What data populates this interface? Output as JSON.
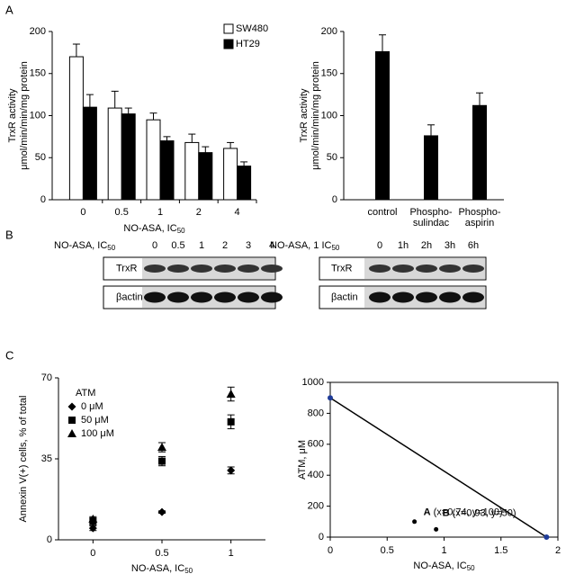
{
  "panels": {
    "a": "A",
    "b": "B",
    "c": "C"
  },
  "chart_data": [
    {
      "type": "bar",
      "ylabel": [
        "TrxR activity",
        "μmol/min/min/mg protein"
      ],
      "xlabel": {
        "text": "NO-ASA, IC",
        "sub": "50"
      },
      "categories": [
        "0",
        "0.5",
        "1",
        "2",
        "4"
      ],
      "series": [
        {
          "name": "SW480",
          "color": "#ffffff",
          "values": [
            170,
            109,
            95,
            68,
            61
          ],
          "errors": [
            15,
            20,
            8,
            10,
            7
          ]
        },
        {
          "name": "HT29",
          "color": "#000000",
          "values": [
            110,
            102,
            70,
            56,
            40
          ],
          "errors": [
            15,
            7,
            5,
            7,
            5
          ]
        }
      ],
      "ylim": [
        0,
        200
      ],
      "yticks": [
        0,
        50,
        100,
        150,
        200
      ]
    },
    {
      "type": "bar",
      "ylabel": [
        "TrxR activity",
        "μmol/min/min/mg protein"
      ],
      "categories": [
        [
          "control"
        ],
        [
          "Phospho-",
          "sulindac"
        ],
        [
          "Phospho-",
          "aspirin"
        ]
      ],
      "series": [
        {
          "color": "#000000",
          "values": [
            176,
            76,
            112
          ],
          "errors": [
            20,
            13,
            15
          ]
        }
      ],
      "ylim": [
        0,
        200
      ],
      "yticks": [
        0,
        50,
        100,
        150,
        200
      ]
    },
    {
      "type": "scatter",
      "ylabel": [
        "Annexin V(+) cells, % of total"
      ],
      "xlabel": {
        "text": "NO-ASA, IC",
        "sub": "50"
      },
      "legend_title": "ATM",
      "x": [
        0,
        0.5,
        1
      ],
      "series": [
        {
          "name": "0 μM",
          "marker": "diamond",
          "color": "#000000",
          "values": [
            5,
            12,
            30
          ],
          "errors": [
            1,
            0.5,
            1.5
          ]
        },
        {
          "name": "50 μM",
          "marker": "square",
          "color": "#000000",
          "values": [
            8,
            34,
            51
          ],
          "errors": [
            1.5,
            2,
            3
          ]
        },
        {
          "name": "100 μM",
          "marker": "triangle",
          "color": "#000000",
          "values": [
            9,
            40,
            63
          ],
          "errors": [
            1,
            2,
            3
          ]
        }
      ],
      "xlim": [
        -0.25,
        1.25
      ],
      "xticks": [
        0,
        0.5,
        1
      ],
      "ylim": [
        0,
        70
      ],
      "yticks": [
        0,
        35,
        70
      ]
    },
    {
      "type": "line",
      "ylabel": [
        "ATM, μM"
      ],
      "xlabel": {
        "text": "NO-ASA, IC",
        "sub": "50"
      },
      "series": [
        {
          "color": "#000000",
          "marker_color": "#1f3c99",
          "x": [
            0,
            1.9
          ],
          "values": [
            900,
            0
          ]
        }
      ],
      "points": [
        {
          "label": "A",
          "annotation": "(x=0.74, y=100)",
          "x": 0.74,
          "y": 100
        },
        {
          "label": "B",
          "annotation": "(x=0.93, y=50)",
          "x": 0.93,
          "y": 50
        }
      ],
      "xlim": [
        0,
        2
      ],
      "xticks": [
        0,
        0.5,
        1,
        1.5,
        2
      ],
      "ylim": [
        0,
        1000
      ],
      "yticks": [
        0,
        200,
        400,
        600,
        800,
        1000
      ]
    }
  ],
  "blots": [
    {
      "header": {
        "text": "NO-ASA, IC",
        "sub": "50"
      },
      "lanes": [
        "0",
        "0.5",
        "1",
        "2",
        "3",
        "4"
      ],
      "rows": [
        "TrxR",
        "βactin"
      ]
    },
    {
      "header": {
        "text": "NO-ASA, 1 IC",
        "sub": "50"
      },
      "lanes": [
        "0",
        "1h",
        "2h",
        "3h",
        "6h"
      ],
      "rows": [
        "TrxR",
        "βactin"
      ]
    }
  ]
}
